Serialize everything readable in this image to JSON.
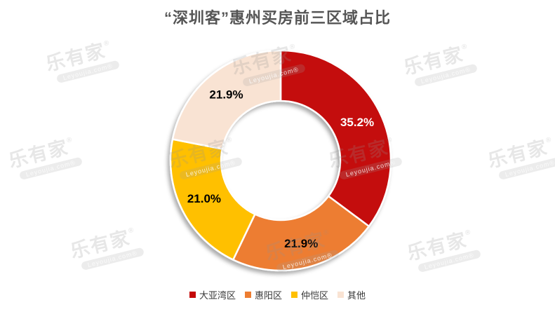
{
  "title": "“深圳客”惠州买房前三区域占比",
  "watermark": {
    "brand": "乐有家",
    "registered": "®",
    "domain": "Leyoujia.com®"
  },
  "chart_data": {
    "type": "pie",
    "subtype": "donut",
    "title": "“深圳客”惠州买房前三区域占比",
    "categories": [
      "大亚湾区",
      "惠阳区",
      "仲恺区",
      "其他"
    ],
    "values": [
      35.2,
      21.9,
      21.0,
      21.9
    ],
    "labels": [
      "35.2%",
      "21.9%",
      "21.0%",
      "21.9%"
    ],
    "colors": [
      "#c40808",
      "#ed7d31",
      "#ffc000",
      "#f9e3d3"
    ],
    "label_colors": [
      "#ffffff",
      "#000000",
      "#000000",
      "#000000"
    ],
    "start_angle_deg": 0,
    "direction": "clockwise",
    "donut_hole_ratio": 0.54,
    "legend_position": "bottom",
    "slice_border_color": "#ffffff"
  }
}
